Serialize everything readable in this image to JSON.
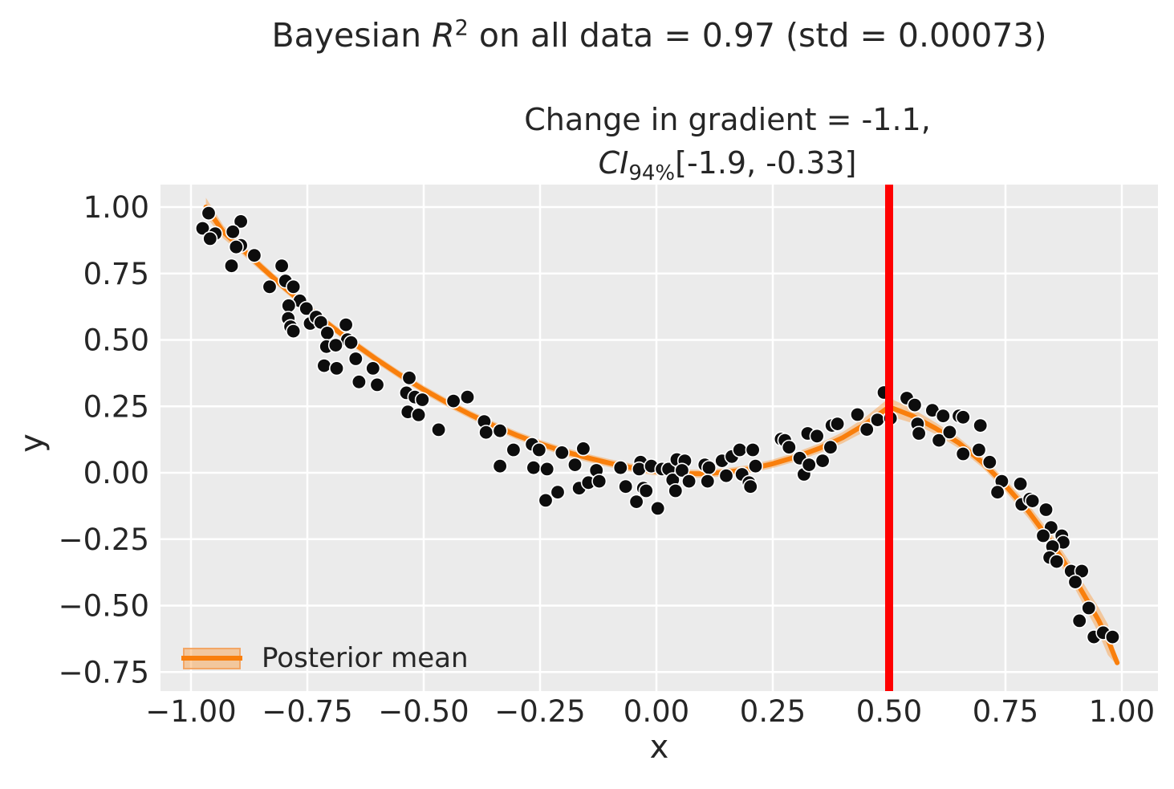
{
  "titles": {
    "suptitle_prefix": "Bayesian ",
    "suptitle_var": "R",
    "suptitle_sup": "2",
    "suptitle_suffix": " on all data = 0.97 (std = 0.00073)",
    "axes_line1": "Change in gradient = -1.1,",
    "axes_line2_var": "CI",
    "axes_line2_sub": "94%",
    "axes_line2_suffix": "[-1.9, -0.33]"
  },
  "legend": {
    "label": "Posterior mean"
  },
  "colors": {
    "figure_bg": "#ffffff",
    "plot_bg": "#ebebeb",
    "grid": "#ffffff",
    "scatter": "#0d0d0d",
    "scatter_edge": "#ffffff",
    "posterior_mean": "#f97f0c",
    "ci_band": "#fa9b3d",
    "ci_band_legend": "rgba(250,155,61,0.45)",
    "ci_band_edge": "rgba(243,160,92,0.85)",
    "vline": "#ff0000",
    "text": "#262626"
  },
  "chart_data": {
    "type": "scatter",
    "title": "Bayesian R^2 on all data = 0.97 (std = 0.00073)",
    "subtitle": "Change in gradient = -1.1, CI_94% [-1.9, -0.33]",
    "xlabel": "x",
    "ylabel": "y",
    "xlim": [
      -1.0655,
      1.0776
    ],
    "ylim": [
      -0.8217,
      1.0846
    ],
    "grid": true,
    "legend_label": "Posterior mean",
    "legend_position": "lower left",
    "vline_x": 0.5,
    "xticks": [
      -1.0,
      -0.75,
      -0.5,
      -0.25,
      0.0,
      0.25,
      0.5,
      0.75,
      1.0
    ],
    "xtick_labels": [
      "−1.00",
      "−0.75",
      "−0.50",
      "−0.25",
      "0.00",
      "0.25",
      "0.50",
      "0.75",
      "1.00"
    ],
    "yticks": [
      1.0,
      0.75,
      0.5,
      0.25,
      0.0,
      -0.25,
      -0.5,
      -0.75
    ],
    "ytick_labels": [
      "1.00",
      "0.75",
      "0.50",
      "0.25",
      "0.00",
      "−0.25",
      "−0.50",
      "−0.75"
    ],
    "scatter_points": [
      [
        -0.962,
        0.977
      ],
      [
        -0.975,
        0.92
      ],
      [
        -0.948,
        0.9
      ],
      [
        -0.959,
        0.881
      ],
      [
        -0.893,
        0.946
      ],
      [
        -0.91,
        0.907
      ],
      [
        -0.893,
        0.856
      ],
      [
        -0.903,
        0.85
      ],
      [
        -0.864,
        0.818
      ],
      [
        -0.913,
        0.779
      ],
      [
        -0.805,
        0.779
      ],
      [
        -0.831,
        0.7
      ],
      [
        -0.797,
        0.722
      ],
      [
        -0.78,
        0.7
      ],
      [
        -0.766,
        0.647
      ],
      [
        -0.79,
        0.629
      ],
      [
        -0.752,
        0.618
      ],
      [
        -0.791,
        0.581
      ],
      [
        -0.786,
        0.55
      ],
      [
        -0.78,
        0.533
      ],
      [
        -0.744,
        0.562
      ],
      [
        -0.731,
        0.586
      ],
      [
        -0.721,
        0.566
      ],
      [
        -0.707,
        0.526
      ],
      [
        -0.667,
        0.557
      ],
      [
        -0.664,
        0.501
      ],
      [
        -0.709,
        0.475
      ],
      [
        -0.689,
        0.48
      ],
      [
        -0.656,
        0.49
      ],
      [
        -0.714,
        0.403
      ],
      [
        -0.687,
        0.393
      ],
      [
        -0.646,
        0.429
      ],
      [
        -0.639,
        0.342
      ],
      [
        -0.609,
        0.393
      ],
      [
        -0.6,
        0.331
      ],
      [
        -0.531,
        0.357
      ],
      [
        -0.537,
        0.301
      ],
      [
        -0.519,
        0.285
      ],
      [
        -0.503,
        0.275
      ],
      [
        -0.436,
        0.27
      ],
      [
        -0.406,
        0.285
      ],
      [
        -0.534,
        0.229
      ],
      [
        -0.511,
        0.218
      ],
      [
        -0.468,
        0.162
      ],
      [
        -0.37,
        0.193
      ],
      [
        -0.366,
        0.152
      ],
      [
        -0.336,
        0.158
      ],
      [
        -0.307,
        0.086
      ],
      [
        -0.336,
        0.025
      ],
      [
        -0.267,
        0.107
      ],
      [
        -0.252,
        0.086
      ],
      [
        -0.264,
        0.019
      ],
      [
        -0.235,
        0.014
      ],
      [
        -0.203,
        0.076
      ],
      [
        -0.238,
        -0.104
      ],
      [
        -0.212,
        -0.073
      ],
      [
        -0.175,
        0.03
      ],
      [
        -0.166,
        -0.058
      ],
      [
        -0.157,
        0.091
      ],
      [
        -0.146,
        -0.037
      ],
      [
        -0.129,
        0.009
      ],
      [
        -0.123,
        -0.032
      ],
      [
        -0.077,
        0.019
      ],
      [
        -0.066,
        -0.052
      ],
      [
        -0.043,
        -0.109
      ],
      [
        -0.034,
        0.04
      ],
      [
        -0.037,
        0.014
      ],
      [
        -0.028,
        -0.058
      ],
      [
        -0.022,
        -0.068
      ],
      [
        -0.011,
        0.025
      ],
      [
        0.003,
        -0.134
      ],
      [
        0.012,
        0.014
      ],
      [
        0.026,
        0.014
      ],
      [
        0.035,
        -0.027
      ],
      [
        0.044,
        0.05
      ],
      [
        0.041,
        -0.068
      ],
      [
        0.061,
        0.045
      ],
      [
        0.055,
        0.009
      ],
      [
        0.07,
        -0.032
      ],
      [
        0.104,
        0.03
      ],
      [
        0.113,
        0.019
      ],
      [
        0.11,
        -0.032
      ],
      [
        0.141,
        0.045
      ],
      [
        0.15,
        -0.011
      ],
      [
        0.162,
        0.061
      ],
      [
        0.179,
        0.086
      ],
      [
        0.184,
        -0.006
      ],
      [
        0.199,
        -0.037
      ],
      [
        0.207,
        0.086
      ],
      [
        0.202,
        -0.052
      ],
      [
        0.213,
        0.025
      ],
      [
        0.268,
        0.127
      ],
      [
        0.276,
        0.122
      ],
      [
        0.285,
        0.096
      ],
      [
        0.308,
        0.055
      ],
      [
        0.317,
        -0.006
      ],
      [
        0.325,
        0.148
      ],
      [
        0.328,
        0.03
      ],
      [
        0.345,
        0.138
      ],
      [
        0.357,
        0.045
      ],
      [
        0.377,
        0.178
      ],
      [
        0.374,
        0.096
      ],
      [
        0.389,
        0.184
      ],
      [
        0.432,
        0.219
      ],
      [
        0.452,
        0.163
      ],
      [
        0.475,
        0.199
      ],
      [
        0.489,
        0.302
      ],
      [
        0.503,
        0.205
      ],
      [
        0.538,
        0.281
      ],
      [
        0.555,
        0.255
      ],
      [
        0.561,
        0.184
      ],
      [
        0.564,
        0.148
      ],
      [
        0.593,
        0.235
      ],
      [
        0.607,
        0.122
      ],
      [
        0.616,
        0.214
      ],
      [
        0.63,
        0.153
      ],
      [
        0.65,
        0.214
      ],
      [
        0.659,
        0.209
      ],
      [
        0.659,
        0.071
      ],
      [
        0.696,
        0.178
      ],
      [
        0.693,
        0.086
      ],
      [
        0.716,
        0.04
      ],
      [
        0.742,
        -0.032
      ],
      [
        0.733,
        -0.073
      ],
      [
        0.782,
        -0.042
      ],
      [
        0.785,
        -0.119
      ],
      [
        0.802,
        -0.099
      ],
      [
        0.808,
        -0.106
      ],
      [
        0.837,
        -0.139
      ],
      [
        0.848,
        -0.206
      ],
      [
        0.831,
        -0.237
      ],
      [
        0.871,
        -0.237
      ],
      [
        0.874,
        -0.262
      ],
      [
        0.851,
        -0.278
      ],
      [
        0.845,
        -0.319
      ],
      [
        0.86,
        -0.334
      ],
      [
        0.891,
        -0.37
      ],
      [
        0.914,
        -0.37
      ],
      [
        0.9,
        -0.411
      ],
      [
        0.929,
        -0.509
      ],
      [
        0.909,
        -0.557
      ],
      [
        0.94,
        -0.618
      ],
      [
        0.96,
        -0.602
      ],
      [
        0.98,
        -0.618
      ]
    ],
    "posterior_mean_curve": [
      [
        -0.968,
        1.0,
        0.035
      ],
      [
        -0.93,
        0.905,
        0.024
      ],
      [
        -0.9,
        0.858,
        0.02
      ],
      [
        -0.85,
        0.776,
        0.017
      ],
      [
        -0.8,
        0.698,
        0.016
      ],
      [
        -0.75,
        0.624,
        0.015
      ],
      [
        -0.7,
        0.553,
        0.015
      ],
      [
        -0.65,
        0.487,
        0.015
      ],
      [
        -0.6,
        0.425,
        0.015
      ],
      [
        -0.55,
        0.367,
        0.015
      ],
      [
        -0.5,
        0.313,
        0.015
      ],
      [
        -0.45,
        0.264,
        0.015
      ],
      [
        -0.4,
        0.219,
        0.015
      ],
      [
        -0.35,
        0.178,
        0.015
      ],
      [
        -0.3,
        0.141,
        0.015
      ],
      [
        -0.25,
        0.109,
        0.015
      ],
      [
        -0.2,
        0.081,
        0.015
      ],
      [
        -0.15,
        0.057,
        0.015
      ],
      [
        -0.1,
        0.036,
        0.015
      ],
      [
        -0.05,
        0.018,
        0.015
      ],
      [
        0.0,
        0.005,
        0.015
      ],
      [
        0.05,
        -0.003,
        0.015
      ],
      [
        0.1,
        -0.004,
        0.015
      ],
      [
        0.15,
        0.002,
        0.015
      ],
      [
        0.2,
        0.014,
        0.015
      ],
      [
        0.25,
        0.034,
        0.016
      ],
      [
        0.3,
        0.06,
        0.017
      ],
      [
        0.35,
        0.092,
        0.018
      ],
      [
        0.4,
        0.132,
        0.021
      ],
      [
        0.45,
        0.184,
        0.027
      ],
      [
        0.5,
        0.248,
        0.034
      ],
      [
        0.55,
        0.214,
        0.027
      ],
      [
        0.6,
        0.167,
        0.022
      ],
      [
        0.65,
        0.112,
        0.02
      ],
      [
        0.7,
        0.04,
        0.02
      ],
      [
        0.75,
        -0.048,
        0.022
      ],
      [
        0.8,
        -0.147,
        0.026
      ],
      [
        0.85,
        -0.265,
        0.03
      ],
      [
        0.9,
        -0.403,
        0.036
      ],
      [
        0.95,
        -0.555,
        0.048
      ],
      [
        0.97,
        -0.628,
        0.058
      ],
      [
        0.99,
        -0.715,
        0.01
      ]
    ]
  }
}
